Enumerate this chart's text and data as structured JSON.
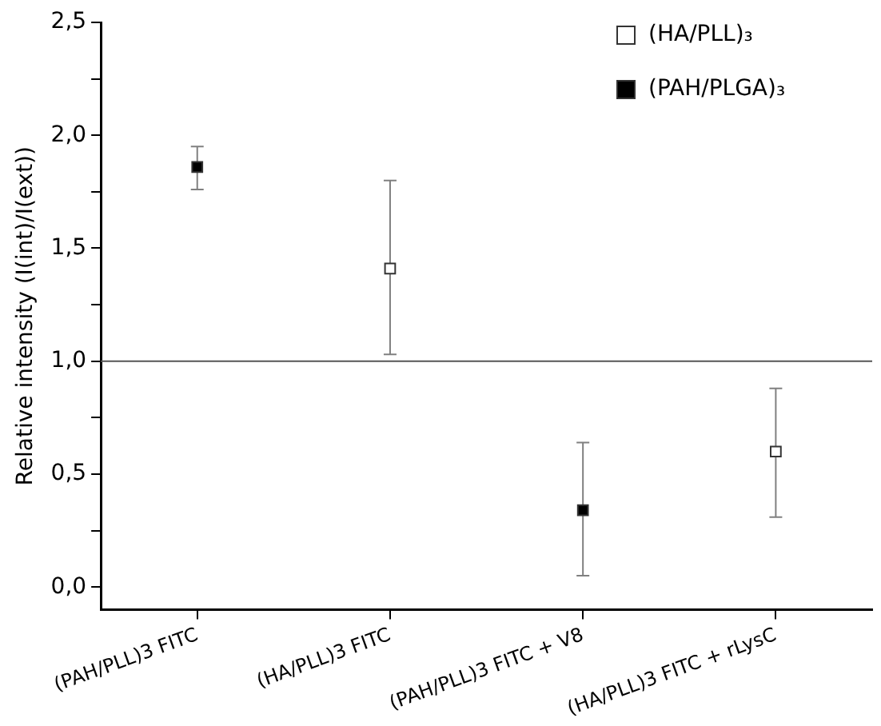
{
  "chart_data": {
    "type": "scatter",
    "ylabel": "Relative intensity (I(int)/I(ext))",
    "categories": [
      "(PAH/PLL)3 FITC",
      "(HA/PLL)3 FITC",
      "(PAH/PLL)3 FITC + V8",
      "(HA/PLL)3 FITC + rLysC"
    ],
    "series": [
      {
        "name": "(HA/PLL)₃",
        "color": "#ffffff",
        "values": [
          null,
          1.41,
          null,
          0.6
        ],
        "errors": [
          null,
          [
            1.03,
            1.8
          ],
          null,
          [
            0.31,
            0.88
          ]
        ]
      },
      {
        "name": "(PAH/PLGA)₃",
        "color": "#000000",
        "values": [
          1.86,
          null,
          0.34,
          null
        ],
        "errors": [
          [
            1.76,
            1.95
          ],
          null,
          [
            0.05,
            0.64
          ],
          null
        ]
      }
    ],
    "ylim": [
      -0.1,
      2.5
    ],
    "yticks": [
      {
        "value": 0,
        "label": "0,0"
      },
      {
        "value": 0.25,
        "label": null
      },
      {
        "value": 0.5,
        "label": "0,5"
      },
      {
        "value": 0.75,
        "label": null
      },
      {
        "value": 1,
        "label": "1,0"
      },
      {
        "value": 1.25,
        "label": null
      },
      {
        "value": 1.5,
        "label": "1,5"
      },
      {
        "value": 1.75,
        "label": null
      },
      {
        "value": 2,
        "label": "2,0"
      },
      {
        "value": 2.25,
        "label": null
      },
      {
        "value": 2.5,
        "label": "2,5"
      }
    ],
    "ref_lines": [
      {
        "axis": "y",
        "value": 1,
        "color": "#555555"
      }
    ],
    "marker": "square",
    "legend": "top right",
    "grid": false
  }
}
